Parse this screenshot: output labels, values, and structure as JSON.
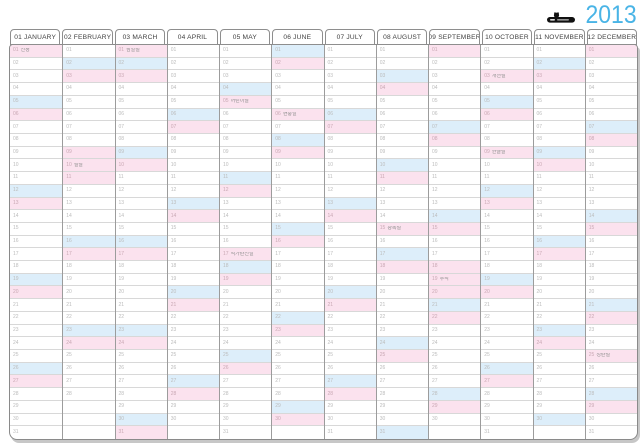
{
  "title": {
    "year": "2013",
    "accent_color": "#49b4e6",
    "logo": "clip-character-logo"
  },
  "colors": {
    "saturday_fill": "#ddeefa",
    "holiday_fill": "#fbe2ee",
    "grid_outer_border": "#8a8a8a",
    "column_line": "#9c9c9c",
    "row_line": "#d8d8d8",
    "day_number": "#bcbcbc",
    "holiday_text": "#8d8d8d",
    "header_text": "#3f3f3f"
  },
  "months": [
    {
      "label": "01 JANUARY",
      "days": 31,
      "saturdays": [
        5,
        12,
        19,
        26
      ],
      "sundays": [
        6,
        13,
        20,
        27
      ],
      "holidays": [
        {
          "day": 1,
          "label": "신정"
        }
      ]
    },
    {
      "label": "02 FEBRUARY",
      "days": 28,
      "saturdays": [
        2,
        9,
        16,
        23
      ],
      "sundays": [
        3,
        10,
        17,
        24
      ],
      "holidays": [
        {
          "day": 9
        },
        {
          "day": 10,
          "label": "설날"
        },
        {
          "day": 11
        }
      ]
    },
    {
      "label": "03 MARCH",
      "days": 31,
      "saturdays": [
        2,
        9,
        16,
        23,
        30
      ],
      "sundays": [
        3,
        10,
        17,
        24,
        31
      ],
      "holidays": [
        {
          "day": 1,
          "label": "삼일절"
        }
      ]
    },
    {
      "label": "04 APRIL",
      "days": 30,
      "saturdays": [
        6,
        13,
        20,
        27
      ],
      "sundays": [
        7,
        14,
        21,
        28
      ],
      "holidays": []
    },
    {
      "label": "05 MAY",
      "days": 31,
      "saturdays": [
        4,
        11,
        18,
        25
      ],
      "sundays": [
        5,
        12,
        19,
        26
      ],
      "holidays": [
        {
          "day": 5,
          "label": "어린이날"
        },
        {
          "day": 17,
          "label": "석가탄신일"
        }
      ]
    },
    {
      "label": "06 JUNE",
      "days": 30,
      "saturdays": [
        1,
        8,
        15,
        22,
        29
      ],
      "sundays": [
        2,
        9,
        16,
        23,
        30
      ],
      "holidays": [
        {
          "day": 6,
          "label": "현충일"
        }
      ]
    },
    {
      "label": "07 JULY",
      "days": 31,
      "saturdays": [
        6,
        13,
        20,
        27
      ],
      "sundays": [
        7,
        14,
        21,
        28
      ],
      "holidays": []
    },
    {
      "label": "08 AUGUST",
      "days": 31,
      "saturdays": [
        3,
        10,
        17,
        24,
        31
      ],
      "sundays": [
        4,
        11,
        18,
        25
      ],
      "holidays": [
        {
          "day": 15,
          "label": "광복절"
        }
      ]
    },
    {
      "label": "09 SEPTEMBER",
      "days": 30,
      "saturdays": [
        7,
        14,
        21,
        28
      ],
      "sundays": [
        1,
        8,
        15,
        22,
        29
      ],
      "holidays": [
        {
          "day": 18
        },
        {
          "day": 19,
          "label": "추석"
        },
        {
          "day": 20
        }
      ]
    },
    {
      "label": "10 OCTOBER",
      "days": 31,
      "saturdays": [
        5,
        12,
        19,
        26
      ],
      "sundays": [
        6,
        13,
        20,
        27
      ],
      "holidays": [
        {
          "day": 3,
          "label": "개천절"
        },
        {
          "day": 9,
          "label": "한글날"
        }
      ]
    },
    {
      "label": "11 NOVEMBER",
      "days": 30,
      "saturdays": [
        2,
        9,
        16,
        23,
        30
      ],
      "sundays": [
        3,
        10,
        17,
        24
      ],
      "holidays": []
    },
    {
      "label": "12 DECEMBER",
      "days": 31,
      "saturdays": [
        7,
        14,
        21,
        28
      ],
      "sundays": [
        1,
        8,
        15,
        22,
        29
      ],
      "holidays": [
        {
          "day": 25,
          "label": "성탄절"
        }
      ]
    }
  ]
}
